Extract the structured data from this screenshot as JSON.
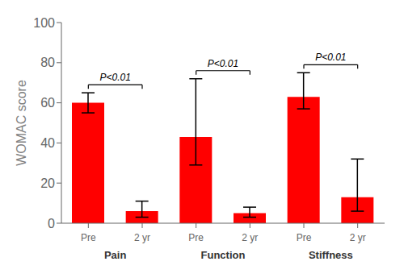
{
  "chart_data": {
    "type": "bar",
    "categories": [
      "Pre",
      "2 yr",
      "Pre",
      "2 yr",
      "Pre",
      "2 yr"
    ],
    "groups": [
      "Pain",
      "Function",
      "Stiffness"
    ],
    "values": [
      60,
      6,
      43,
      5,
      63,
      13
    ],
    "error_plus": [
      5,
      5,
      29,
      3,
      12,
      19
    ],
    "error_minus": [
      5,
      3,
      14,
      2,
      6,
      7
    ],
    "color": "#FF0000",
    "ylabel": "WOMAC score",
    "ylim": [
      0,
      100
    ],
    "yticks": [
      0,
      20,
      40,
      60,
      80,
      100
    ],
    "annotations": [
      "P<0.01",
      "P<0.01",
      "P<0.01"
    ],
    "grid": false
  }
}
